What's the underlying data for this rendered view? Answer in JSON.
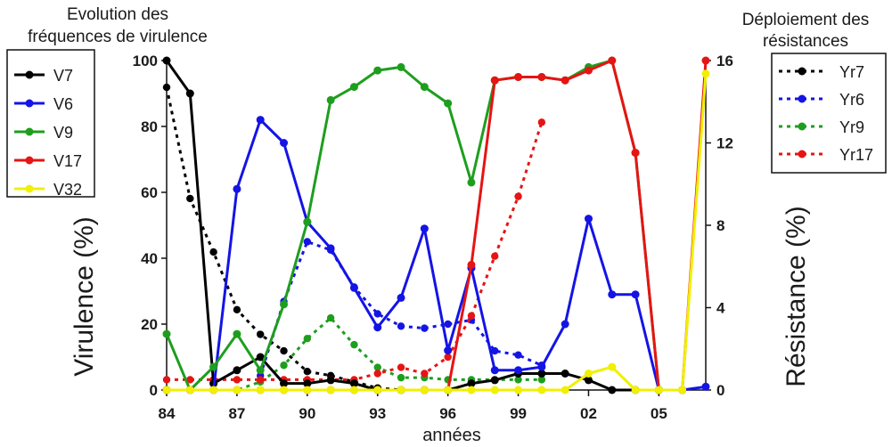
{
  "chart_data": {
    "type": "line",
    "title_left": [
      "Evolution des",
      "fréquences de virulence"
    ],
    "title_right": [
      "Déploiement des",
      "résistances"
    ],
    "xlabel": "années",
    "ylabel_left": "Virulence (%)",
    "ylabel_right": "Résistance (%)",
    "xlim": [
      1984,
      2007
    ],
    "ylim_left": [
      0,
      100
    ],
    "ylim_right": [
      0,
      16
    ],
    "x_ticks": [
      1984,
      1987,
      1990,
      1993,
      1996,
      1999,
      2002,
      2005
    ],
    "x_tick_labels": [
      "84",
      "87",
      "90",
      "93",
      "96",
      "99",
      "02",
      "05"
    ],
    "y_ticks_left": [
      "0",
      "20",
      "40",
      "60",
      "80",
      "100"
    ],
    "y_ticks_right": [
      "0",
      "4",
      "8",
      "12",
      "16"
    ],
    "virulence_series": [
      {
        "name": "V7",
        "color": "#000000",
        "points": [
          [
            1984,
            100
          ],
          [
            1985,
            90
          ],
          [
            1986,
            2
          ],
          [
            1987,
            6
          ],
          [
            1988,
            10
          ],
          [
            1989,
            2
          ],
          [
            1990,
            2
          ],
          [
            1991,
            3
          ],
          [
            1992,
            2
          ],
          [
            1993,
            0
          ],
          [
            1994,
            0
          ],
          [
            1995,
            0
          ],
          [
            1996,
            0
          ],
          [
            1997,
            2
          ],
          [
            1998,
            3
          ],
          [
            1999,
            5
          ],
          [
            2000,
            5
          ],
          [
            2001,
            5
          ],
          [
            2002,
            3
          ],
          [
            2003,
            0
          ],
          [
            2004,
            0
          ],
          [
            2005,
            0
          ]
        ]
      },
      {
        "name": "V6",
        "color": "#1414e6",
        "points": [
          [
            1984,
            0
          ],
          [
            1985,
            0
          ],
          [
            1986,
            0
          ],
          [
            1987,
            61
          ],
          [
            1988,
            82
          ],
          [
            1989,
            75
          ],
          [
            1990,
            51
          ],
          [
            1991,
            43
          ],
          [
            1992,
            31
          ],
          [
            1993,
            19
          ],
          [
            1994,
            28
          ],
          [
            1995,
            49
          ],
          [
            1996,
            12
          ],
          [
            1997,
            37
          ],
          [
            1998,
            6
          ],
          [
            1999,
            6
          ],
          [
            2000,
            7
          ],
          [
            2001,
            20
          ],
          [
            2002,
            52
          ],
          [
            2003,
            29
          ],
          [
            2004,
            29
          ],
          [
            2005,
            0
          ],
          [
            2006,
            0
          ],
          [
            2007,
            1
          ]
        ]
      },
      {
        "name": "V9",
        "color": "#1e9e1e",
        "points": [
          [
            1984,
            17
          ],
          [
            1985,
            0
          ],
          [
            1986,
            7
          ],
          [
            1987,
            17
          ],
          [
            1988,
            6
          ],
          [
            1989,
            26
          ],
          [
            1990,
            51
          ],
          [
            1991,
            88
          ],
          [
            1992,
            92
          ],
          [
            1993,
            97
          ],
          [
            1994,
            98
          ],
          [
            1995,
            92
          ],
          [
            1996,
            87
          ],
          [
            1997,
            63
          ],
          [
            1998,
            94
          ],
          [
            1999,
            95
          ],
          [
            2000,
            95
          ],
          [
            2001,
            94
          ],
          [
            2002,
            98
          ],
          [
            2003,
            100
          ],
          [
            2004,
            72
          ],
          [
            2005,
            0
          ]
        ]
      },
      {
        "name": "V17",
        "color": "#e61414",
        "points": [
          [
            1984,
            0
          ],
          [
            1985,
            0
          ],
          [
            1986,
            0
          ],
          [
            1987,
            0
          ],
          [
            1988,
            0
          ],
          [
            1989,
            0
          ],
          [
            1990,
            0
          ],
          [
            1991,
            0
          ],
          [
            1992,
            0
          ],
          [
            1993,
            0
          ],
          [
            1994,
            0
          ],
          [
            1995,
            0
          ],
          [
            1996,
            0
          ],
          [
            1997,
            38
          ],
          [
            1998,
            94
          ],
          [
            1999,
            95
          ],
          [
            2000,
            95
          ],
          [
            2001,
            94
          ],
          [
            2002,
            97
          ],
          [
            2003,
            100
          ],
          [
            2004,
            72
          ],
          [
            2005,
            0
          ],
          [
            2006,
            0
          ],
          [
            2007,
            100
          ]
        ]
      },
      {
        "name": "V32",
        "color": "#f0f000",
        "points": [
          [
            1984,
            0
          ],
          [
            1985,
            0
          ],
          [
            1986,
            0
          ],
          [
            1987,
            0
          ],
          [
            1988,
            0
          ],
          [
            1989,
            0
          ],
          [
            1990,
            0
          ],
          [
            1991,
            0
          ],
          [
            1992,
            0
          ],
          [
            1993,
            0
          ],
          [
            1994,
            0
          ],
          [
            1995,
            0
          ],
          [
            1996,
            0
          ],
          [
            1997,
            0
          ],
          [
            1998,
            0
          ],
          [
            1999,
            0
          ],
          [
            2000,
            0
          ],
          [
            2001,
            0
          ],
          [
            2002,
            5
          ],
          [
            2003,
            7
          ],
          [
            2004,
            0
          ],
          [
            2005,
            0
          ],
          [
            2006,
            0
          ],
          [
            2007,
            96
          ]
        ]
      }
    ],
    "resistance_series": [
      {
        "name": "Yr7",
        "color": "#000000",
        "points": [
          [
            1984,
            14.7
          ],
          [
            1985,
            9.3
          ],
          [
            1986,
            6.7
          ],
          [
            1987,
            3.9
          ],
          [
            1988,
            2.7
          ],
          [
            1989,
            1.9
          ],
          [
            1990,
            0.9
          ],
          [
            1991,
            0.7
          ],
          [
            1992,
            0.4
          ],
          [
            1993,
            0.1
          ],
          [
            1994,
            0
          ],
          [
            1995,
            0
          ],
          [
            1996,
            0
          ],
          [
            1997,
            0
          ],
          [
            1998,
            0
          ],
          [
            1999,
            0
          ],
          [
            2000,
            0
          ]
        ]
      },
      {
        "name": "Yr6",
        "color": "#1414e6",
        "points": [
          [
            1988,
            0.7
          ],
          [
            1989,
            4.3
          ],
          [
            1990,
            7.2
          ],
          [
            1991,
            6.8
          ],
          [
            1992,
            5
          ],
          [
            1993,
            3.7
          ],
          [
            1994,
            3.1
          ],
          [
            1995,
            3
          ],
          [
            1996,
            3.2
          ],
          [
            1997,
            3.4
          ],
          [
            1998,
            1.9
          ],
          [
            1999,
            1.7
          ],
          [
            2000,
            1.2
          ]
        ]
      },
      {
        "name": "Yr9",
        "color": "#1e9e1e",
        "points": [
          [
            1984,
            0
          ],
          [
            1985,
            0
          ],
          [
            1986,
            0
          ],
          [
            1987,
            0
          ],
          [
            1988,
            0.4
          ],
          [
            1989,
            1.2
          ],
          [
            1990,
            2.5
          ],
          [
            1991,
            3.5
          ],
          [
            1992,
            2.2
          ],
          [
            1993,
            1.1
          ],
          [
            1994,
            0.6
          ],
          [
            1995,
            0.6
          ],
          [
            1996,
            0.5
          ],
          [
            1997,
            0.5
          ],
          [
            1998,
            0.5
          ],
          [
            1999,
            0.5
          ],
          [
            2000,
            0.5
          ]
        ]
      },
      {
        "name": "Yr17",
        "color": "#e61414",
        "points": [
          [
            1984,
            0.5
          ],
          [
            1985,
            0.5
          ],
          [
            1986,
            0.5
          ],
          [
            1987,
            0.5
          ],
          [
            1988,
            0.5
          ],
          [
            1989,
            0.5
          ],
          [
            1990,
            0.5
          ],
          [
            1991,
            0.5
          ],
          [
            1992,
            0.5
          ],
          [
            1993,
            0.8
          ],
          [
            1994,
            1.1
          ],
          [
            1995,
            0.8
          ],
          [
            1996,
            1.6
          ],
          [
            1997,
            3.6
          ],
          [
            1998,
            6.5
          ],
          [
            1999,
            9.4
          ],
          [
            2000,
            13
          ]
        ]
      }
    ]
  }
}
